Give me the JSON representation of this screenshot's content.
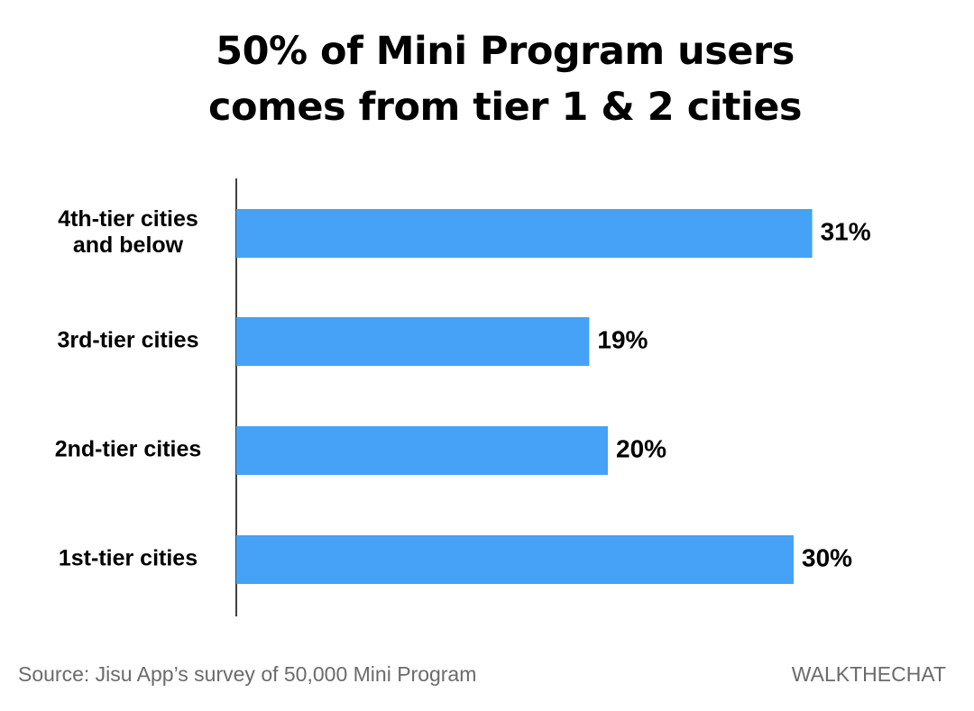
{
  "chart_data": {
    "type": "bar",
    "orientation": "horizontal",
    "title_lines": [
      "50% of Mini Program users",
      "comes from tier 1 & 2 cities"
    ],
    "categories": [
      [
        "4th-tier cities",
        "and below"
      ],
      [
        "3rd-tier cities"
      ],
      [
        "2nd-tier cities"
      ],
      [
        "1st-tier cities"
      ]
    ],
    "values": [
      31,
      19,
      20,
      30
    ],
    "value_labels": [
      "31%",
      "19%",
      "20%",
      "30%"
    ],
    "xlim": [
      0,
      40
    ],
    "xlabel": "",
    "ylabel": "",
    "grid": false,
    "bar_color": "#45a2f6"
  },
  "footer": {
    "source": "Source: Jisu App’s survey of 50,000 Mini Program",
    "brand": "WALKTHECHAT"
  }
}
